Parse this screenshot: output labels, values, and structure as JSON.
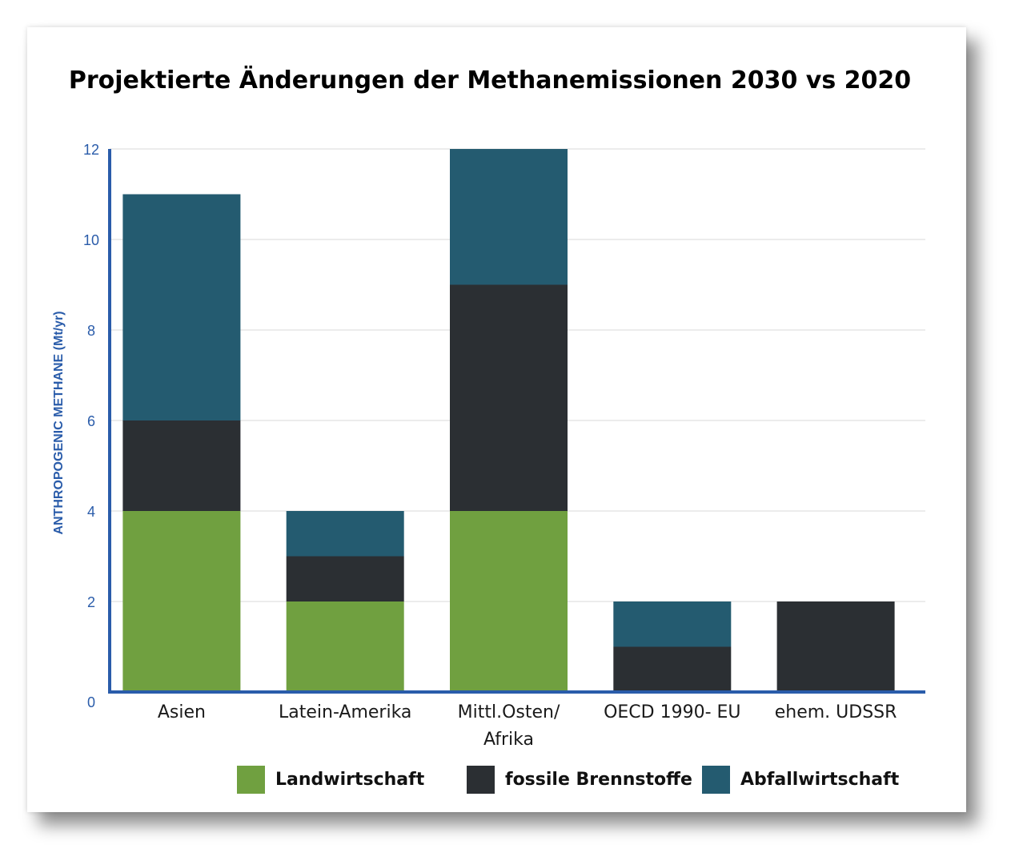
{
  "chart_data": {
    "type": "bar",
    "stacked": true,
    "title": "Projektierte Änderungen der Methanemissionen 2030 vs 2020",
    "ylabel": "ANTHROPOGENIC METHANE (Mt/yr)",
    "xlabel": "",
    "ylim": [
      0,
      12
    ],
    "yticks": [
      0,
      2,
      4,
      6,
      8,
      10,
      12
    ],
    "grid": true,
    "legend_position": "bottom",
    "categories": [
      [
        "Asien"
      ],
      [
        "Latein-Amerika"
      ],
      [
        "Mittl.Osten/",
        "Afrika"
      ],
      [
        "OECD 1990- EU"
      ],
      [
        "ehem. UDSSR"
      ]
    ],
    "series": [
      {
        "name": "Landwirtschaft",
        "color": "#70a040",
        "values": [
          4,
          2,
          4,
          0,
          0
        ]
      },
      {
        "name": "fossile Brennstoffe",
        "color": "#2b2f33",
        "values": [
          2,
          1,
          5,
          1,
          2
        ]
      },
      {
        "name": "Abfallwirtschaft",
        "color": "#245b70",
        "values": [
          5,
          1,
          3,
          1,
          0
        ]
      }
    ],
    "axis_color": "#2a5caa",
    "grid_color": "#e6e6e6"
  }
}
